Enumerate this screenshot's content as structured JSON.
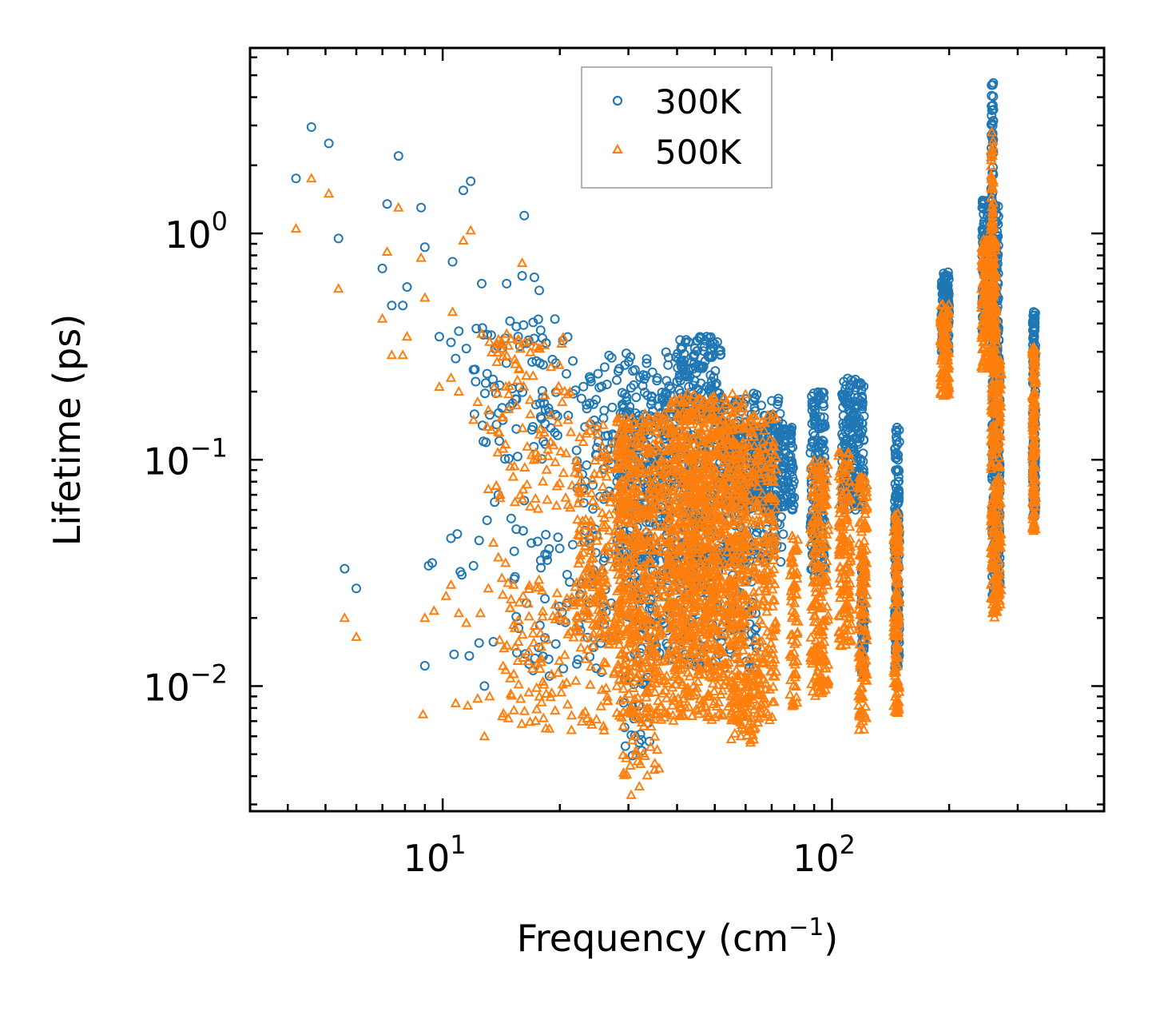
{
  "chart_data": {
    "type": "scatter",
    "title": "",
    "xlabel": "Frequency (cm",
    "xlabel_sup": "−1",
    "xlabel_end": ")",
    "ylabel": "Lifetime (ps)",
    "xscale": "log",
    "yscale": "log",
    "xlim": [
      3.2,
      500
    ],
    "ylim": [
      0.0028,
      6.6
    ],
    "x_major_ticks": [
      {
        "value": 10,
        "base": "10",
        "exp": "1"
      },
      {
        "value": 100,
        "base": "10",
        "exp": "2"
      }
    ],
    "y_major_ticks": [
      {
        "value": 1,
        "base": "10",
        "exp": "0"
      },
      {
        "value": 0.1,
        "base": "10",
        "exp": "−1"
      },
      {
        "value": 0.01,
        "base": "10",
        "exp": "−2"
      }
    ],
    "legend_position": "top-center",
    "series": [
      {
        "name": "300K",
        "marker": "circle-open",
        "color": "#1f77b4",
        "points": [
          [
            4.2,
            1.75
          ],
          [
            4.6,
            2.95
          ],
          [
            5.1,
            2.5
          ],
          [
            5.4,
            0.95
          ],
          [
            5.6,
            0.033
          ],
          [
            6.0,
            0.027
          ],
          [
            7.0,
            0.7
          ],
          [
            7.2,
            1.35
          ],
          [
            7.4,
            0.48
          ],
          [
            7.7,
            2.2
          ],
          [
            7.9,
            0.48
          ],
          [
            8.1,
            0.58
          ],
          [
            8.8,
            1.3
          ],
          [
            9.0,
            0.87
          ],
          [
            9.8,
            0.35
          ],
          [
            10.6,
            0.75
          ],
          [
            11.3,
            1.55
          ],
          [
            11.8,
            1.7
          ],
          [
            12.6,
            0.6
          ],
          [
            14.6,
            0.6
          ],
          [
            16.0,
            0.65
          ],
          [
            16.2,
            1.2
          ],
          [
            17.2,
            0.64
          ],
          [
            17.7,
            0.56
          ],
          [
            10.5,
            0.045
          ],
          [
            10.9,
            0.047
          ],
          [
            9.2,
            0.034
          ],
          [
            9.4,
            0.035
          ],
          [
            11.2,
            0.031
          ],
          [
            12.0,
            0.034
          ],
          [
            12.4,
            0.044
          ],
          [
            13.0,
            0.054
          ],
          [
            15.0,
            0.055
          ],
          [
            16.2,
            0.066
          ],
          [
            9.0,
            0.0123
          ],
          [
            10.7,
            0.0138
          ],
          [
            11.7,
            0.0136
          ],
          [
            12.4,
            0.0155
          ],
          [
            13.5,
            0.0157
          ],
          [
            12.8,
            0.01
          ],
          [
            11.1,
            0.032
          ],
          [
            10.5,
            0.33
          ],
          [
            11.0,
            0.37
          ],
          [
            12.0,
            0.25
          ],
          [
            13.0,
            0.24
          ],
          [
            13.6,
            0.065
          ],
          [
            13.9,
            0.07
          ],
          [
            10.8,
            0.28
          ],
          [
            11.5,
            0.31
          ],
          [
            12.2,
            0.38
          ]
        ],
        "clusters": [
          {
            "fmin": 12,
            "fmax": 22,
            "lmin": 0.1,
            "lmax": 0.42,
            "n": 90
          },
          {
            "fmin": 15,
            "fmax": 30,
            "lmin": 0.011,
            "lmax": 0.05,
            "n": 90
          },
          {
            "fmin": 22,
            "fmax": 40,
            "lmin": 0.06,
            "lmax": 0.3,
            "n": 160
          },
          {
            "fmin": 28,
            "fmax": 75,
            "lmin": 0.035,
            "lmax": 0.2,
            "n": 650
          },
          {
            "fmin": 40,
            "fmax": 52,
            "lmin": 0.15,
            "lmax": 0.35,
            "n": 140
          },
          {
            "fmin": 52,
            "fmax": 80,
            "lmin": 0.06,
            "lmax": 0.14,
            "n": 260
          },
          {
            "fmin": 30,
            "fmax": 65,
            "lmin": 0.012,
            "lmax": 0.04,
            "n": 220
          },
          {
            "fmin": 29,
            "fmax": 34,
            "lmin": 0.0048,
            "lmax": 0.012,
            "n": 25
          },
          {
            "fmin": 88,
            "fmax": 96,
            "lmin": 0.03,
            "lmax": 0.2,
            "n": 160
          },
          {
            "fmin": 106,
            "fmax": 121,
            "lmin": 0.06,
            "lmax": 0.23,
            "n": 200
          },
          {
            "fmin": 119,
            "fmax": 121,
            "lmin": 0.011,
            "lmax": 0.035,
            "n": 60
          },
          {
            "fmin": 145,
            "fmax": 149,
            "lmin": 0.012,
            "lmax": 0.14,
            "n": 160
          },
          {
            "fmin": 191,
            "fmax": 200,
            "lmin": 0.3,
            "lmax": 0.68,
            "n": 140
          },
          {
            "fmin": 243,
            "fmax": 268,
            "lmin": 0.35,
            "lmax": 1.4,
            "n": 260
          },
          {
            "fmin": 258,
            "fmax": 270,
            "lmin": 0.025,
            "lmax": 0.4,
            "n": 260
          },
          {
            "fmin": 256,
            "fmax": 260,
            "lmin": 1.4,
            "lmax": 4.7,
            "n": 40
          },
          {
            "fmin": 328,
            "fmax": 333,
            "lmin": 0.055,
            "lmax": 0.46,
            "n": 130
          }
        ]
      },
      {
        "name": "500K",
        "marker": "triangle-open",
        "color": "#ff7f0e",
        "points": [
          [
            4.2,
            1.05
          ],
          [
            4.6,
            1.75
          ],
          [
            5.1,
            1.5
          ],
          [
            5.4,
            0.57
          ],
          [
            5.6,
            0.02
          ],
          [
            6.0,
            0.0165
          ],
          [
            7.0,
            0.42
          ],
          [
            7.2,
            0.83
          ],
          [
            7.4,
            0.29
          ],
          [
            7.7,
            1.3
          ],
          [
            7.9,
            0.29
          ],
          [
            8.1,
            0.35
          ],
          [
            8.8,
            0.78
          ],
          [
            9.0,
            0.52
          ],
          [
            9.8,
            0.21
          ],
          [
            10.6,
            0.45
          ],
          [
            11.3,
            0.93
          ],
          [
            11.8,
            1.03
          ],
          [
            12.6,
            0.36
          ],
          [
            14.6,
            0.36
          ],
          [
            16.0,
            0.74
          ],
          [
            8.9,
            0.0075
          ],
          [
            10.8,
            0.0084
          ],
          [
            11.6,
            0.0082
          ],
          [
            12.3,
            0.0088
          ],
          [
            13.2,
            0.009
          ],
          [
            12.8,
            0.006
          ],
          [
            9.0,
            0.02
          ],
          [
            10.2,
            0.025
          ],
          [
            11.5,
            0.019
          ],
          [
            12.5,
            0.021
          ],
          [
            13.1,
            0.027
          ],
          [
            14.2,
            0.03
          ],
          [
            9.5,
            0.0215
          ],
          [
            10.5,
            0.028
          ],
          [
            11.0,
            0.021
          ],
          [
            10.5,
            0.23
          ],
          [
            11.0,
            0.2
          ],
          [
            12.0,
            0.15
          ],
          [
            13.0,
            0.14
          ],
          [
            12.3,
            0.18
          ],
          [
            13.5,
            0.043
          ],
          [
            13.9,
            0.037
          ],
          [
            14.5,
            0.035
          ],
          [
            15.2,
            0.028
          ],
          [
            16.1,
            0.025
          ],
          [
            30.5,
            0.0033
          ],
          [
            32.0,
            0.0036
          ]
        ],
        "clusters": [
          {
            "fmin": 13,
            "fmax": 22,
            "lmin": 0.06,
            "lmax": 0.35,
            "n": 110
          },
          {
            "fmin": 14,
            "fmax": 28,
            "lmin": 0.0062,
            "lmax": 0.03,
            "n": 140
          },
          {
            "fmin": 22,
            "fmax": 32,
            "lmin": 0.015,
            "lmax": 0.15,
            "n": 260
          },
          {
            "fmin": 28,
            "fmax": 72,
            "lmin": 0.007,
            "lmax": 0.16,
            "n": 1500
          },
          {
            "fmin": 38,
            "fmax": 60,
            "lmin": 0.015,
            "lmax": 0.2,
            "n": 500
          },
          {
            "fmin": 55,
            "fmax": 66,
            "lmin": 0.0055,
            "lmax": 0.012,
            "n": 80
          },
          {
            "fmin": 29,
            "fmax": 36,
            "lmin": 0.004,
            "lmax": 0.008,
            "n": 30
          },
          {
            "fmin": 78,
            "fmax": 82,
            "lmin": 0.008,
            "lmax": 0.05,
            "n": 70
          },
          {
            "fmin": 88,
            "fmax": 98,
            "lmin": 0.009,
            "lmax": 0.1,
            "n": 220
          },
          {
            "fmin": 104,
            "fmax": 112,
            "lmin": 0.015,
            "lmax": 0.11,
            "n": 150
          },
          {
            "fmin": 117,
            "fmax": 123,
            "lmin": 0.0063,
            "lmax": 0.085,
            "n": 150
          },
          {
            "fmin": 144,
            "fmax": 149,
            "lmin": 0.0075,
            "lmax": 0.06,
            "n": 150
          },
          {
            "fmin": 190,
            "fmax": 200,
            "lmin": 0.19,
            "lmax": 0.49,
            "n": 130
          },
          {
            "fmin": 242,
            "fmax": 265,
            "lmin": 0.25,
            "lmax": 0.95,
            "n": 250
          },
          {
            "fmin": 256,
            "fmax": 272,
            "lmin": 0.02,
            "lmax": 0.28,
            "n": 260
          },
          {
            "fmin": 256,
            "fmax": 260,
            "lmin": 0.9,
            "lmax": 2.8,
            "n": 40
          },
          {
            "fmin": 327,
            "fmax": 334,
            "lmin": 0.048,
            "lmax": 0.32,
            "n": 150
          }
        ]
      }
    ]
  }
}
